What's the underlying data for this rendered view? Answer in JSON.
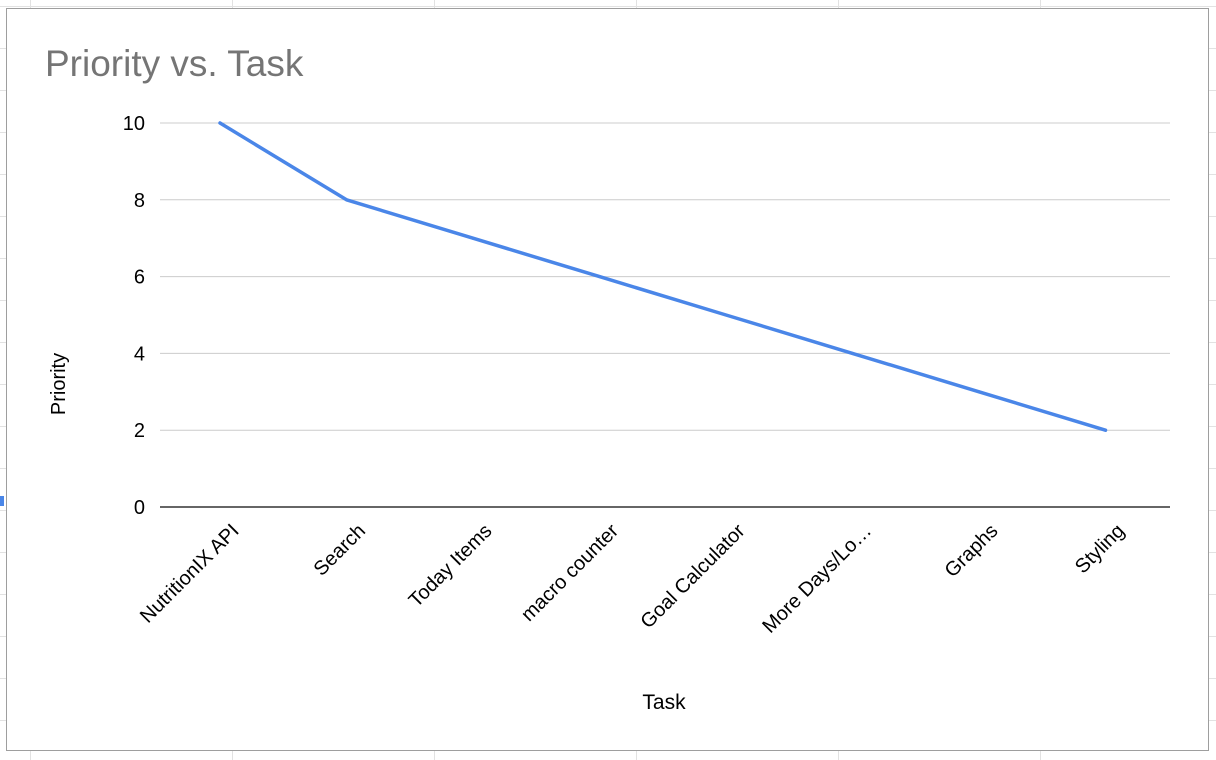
{
  "chart_data": {
    "type": "line",
    "title": "Priority vs. Task",
    "xlabel": "Task",
    "ylabel": "Priority",
    "categories": [
      "NutritionIX API",
      "Search",
      "Today Items",
      "macro counter",
      "Goal Calculator",
      "More Days/Lo…",
      "Graphs",
      "Styling"
    ],
    "series": [
      {
        "values": [
          10,
          8,
          7,
          6,
          5,
          4,
          3,
          2
        ]
      }
    ],
    "ylim": [
      0,
      10
    ],
    "yticks": [
      "0",
      "2",
      "4",
      "6",
      "8",
      "10"
    ],
    "grid": true,
    "legend": "none",
    "colors": {
      "line": "#4a86e8",
      "grid": "#cccccc",
      "axis": "#333333",
      "title": "#757575"
    }
  }
}
